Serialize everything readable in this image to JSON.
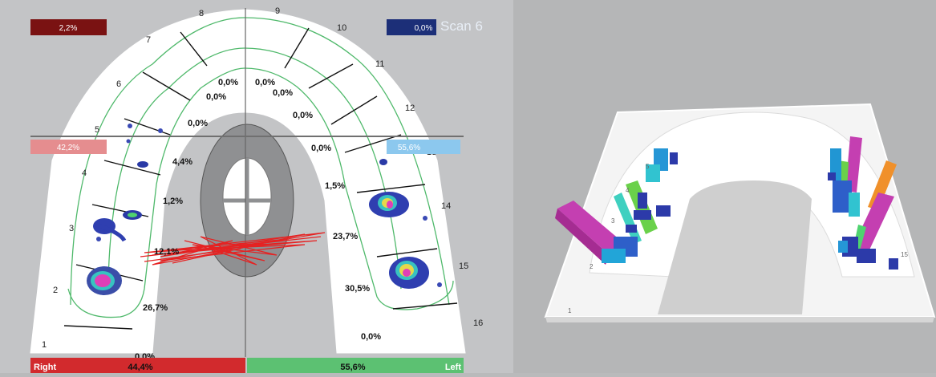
{
  "scan_label": "Scan 6",
  "top_boxes": {
    "left": "2,2%",
    "right": "0,0%"
  },
  "mid_boxes": {
    "left": "42,2%",
    "right": "55,6%"
  },
  "bottom_bar": {
    "right_label": "Right",
    "right_value": "44,4%",
    "left_value": "55,6%",
    "left_label": "Left"
  },
  "tooth_numbers": [
    "1",
    "2",
    "3",
    "4",
    "5",
    "6",
    "7",
    "8",
    "9",
    "10",
    "11",
    "12",
    "13",
    "14",
    "15",
    "16"
  ],
  "right_side_percentages": [
    "0,0%",
    "26,7%",
    "12,1%",
    "1,2%",
    "4,4%",
    "0,0%",
    "0,0%",
    "0,0%"
  ],
  "left_side_percentages": [
    "0,0%",
    "0,0%",
    "0,0%",
    "0,0%",
    "1,5%",
    "23,7%",
    "30,5%",
    "0,0%"
  ],
  "view3d_labels": [
    "1",
    "2",
    "3",
    "4",
    "5",
    "15"
  ],
  "colors": {
    "right_red": "#d22a2d",
    "left_green": "#5cc172",
    "arch_line": "#4fb96b",
    "top_left_box": "#7a1212",
    "top_right_box": "#1c2f78",
    "mid_left_box": "#e58d8f",
    "mid_right_box": "#8cc8ee",
    "contact_red": "#e52222"
  }
}
